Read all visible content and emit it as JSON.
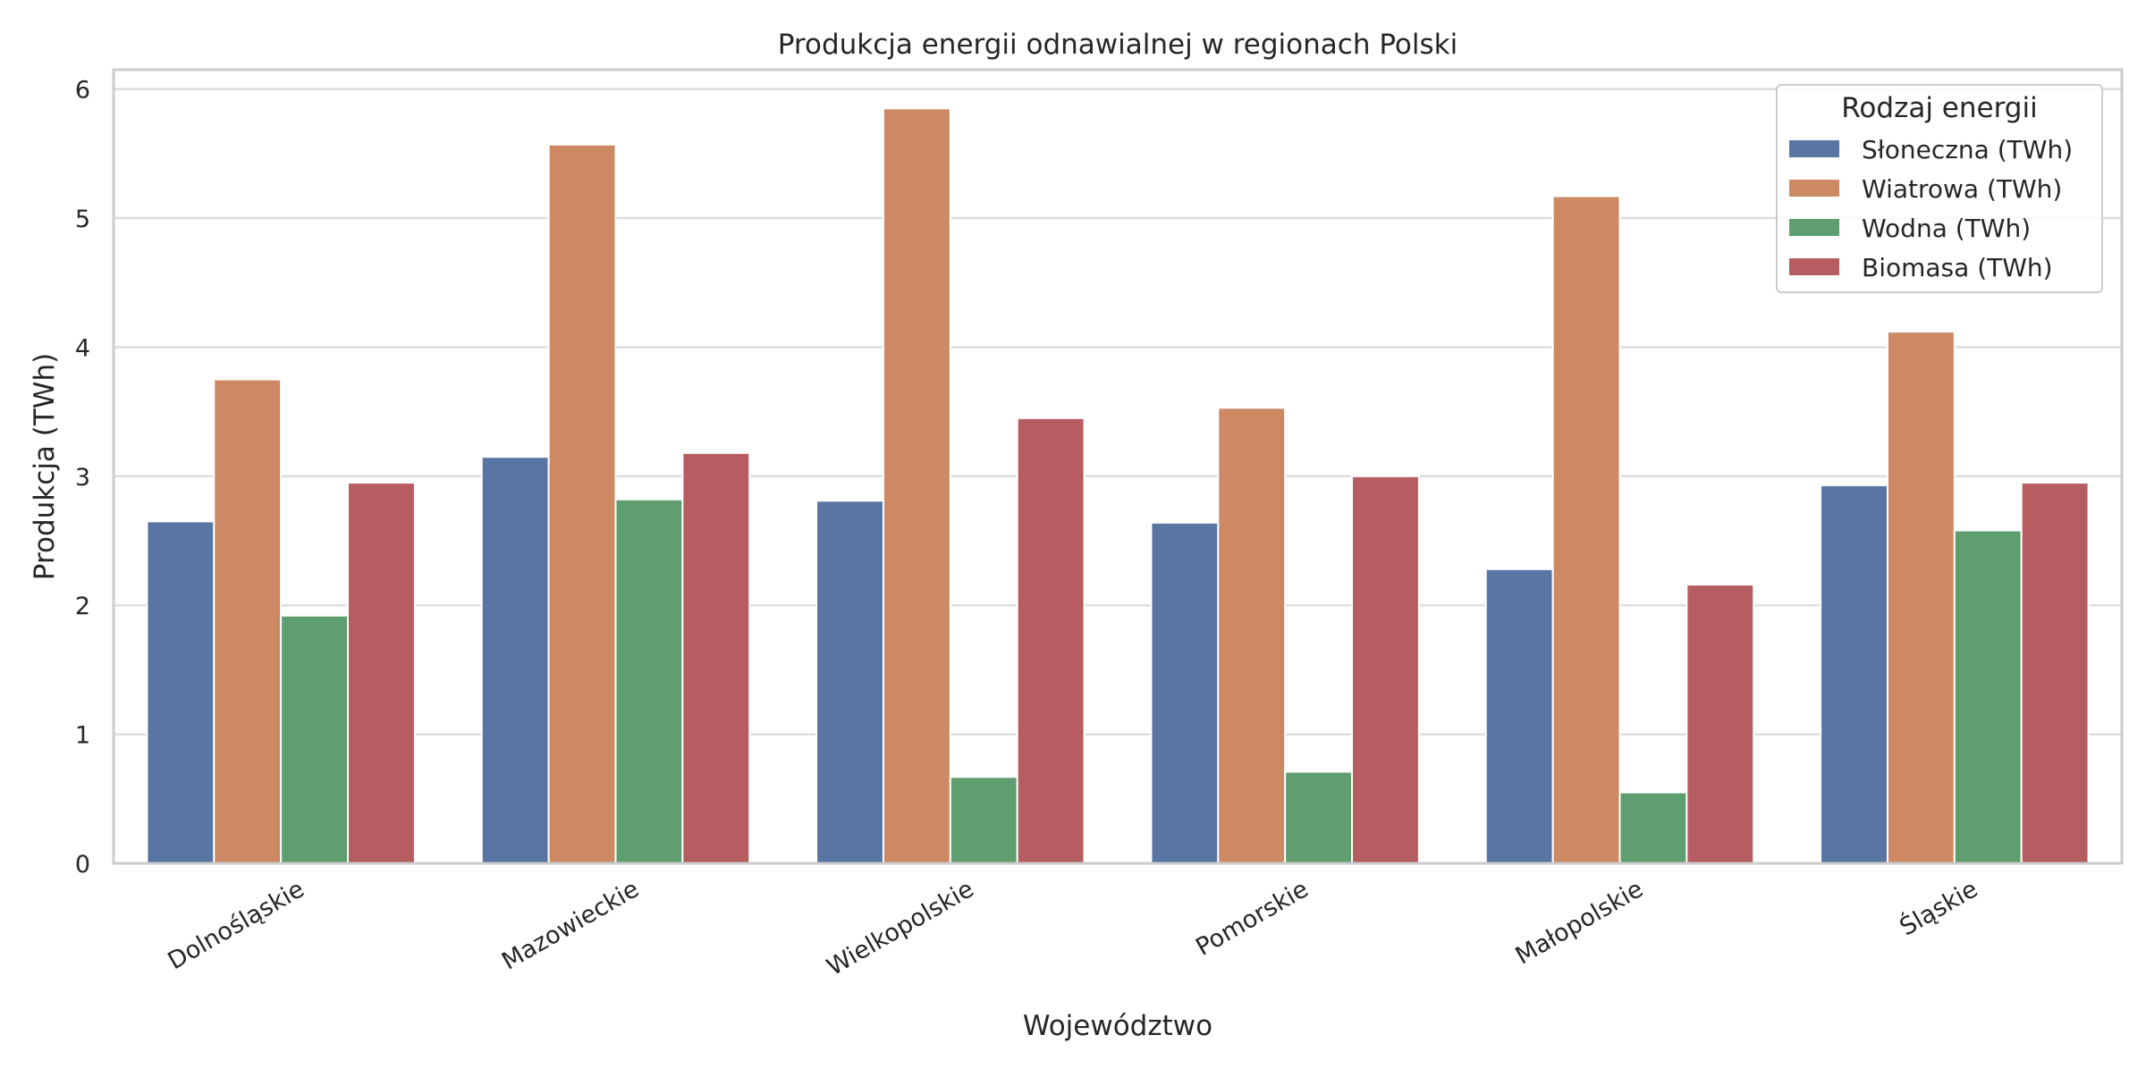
{
  "chart_data": {
    "type": "bar",
    "title": "Produkcja energii odnawialnej w regionach Polski",
    "xlabel": "Województwo",
    "ylabel": "Produkcja (TWh)",
    "categories": [
      "Dolnośląskie",
      "Mazowieckie",
      "Wielkopolskie",
      "Pomorskie",
      "Małopolskie",
      "Śląskie"
    ],
    "series": [
      {
        "name": "Słoneczna (TWh)",
        "color": "#5875a4",
        "values": [
          2.65,
          3.15,
          2.81,
          2.64,
          2.28,
          2.93
        ]
      },
      {
        "name": "Wiatrowa (TWh)",
        "color": "#cc8963",
        "values": [
          3.75,
          5.57,
          5.85,
          3.53,
          5.17,
          4.12
        ]
      },
      {
        "name": "Wodna (TWh)",
        "color": "#5f9e6e",
        "values": [
          1.92,
          2.82,
          0.67,
          0.71,
          0.55,
          2.58
        ]
      },
      {
        "name": "Biomasa (TWh)",
        "color": "#b55d60",
        "values": [
          2.95,
          3.18,
          3.45,
          3.0,
          2.16,
          2.95
        ]
      }
    ],
    "ylim": [
      0,
      6.15
    ],
    "yticks": [
      0,
      1,
      2,
      3,
      4,
      5,
      6
    ],
    "grid": "horizontal",
    "legend": {
      "title": "Rodzaj energii",
      "placement": "top-right"
    }
  }
}
